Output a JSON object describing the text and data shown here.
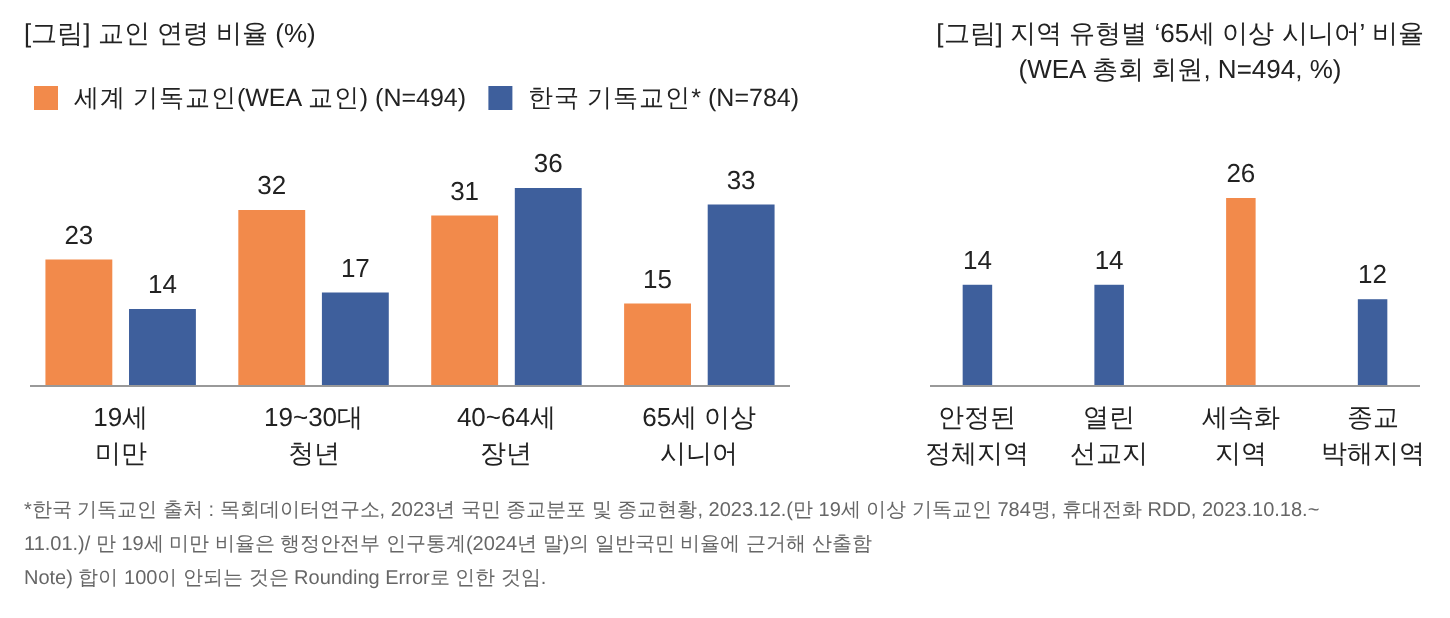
{
  "chart_data": [
    {
      "type": "bar",
      "title": "[그림] 교인 연령 비율 (%)",
      "categories": [
        "19세\n미만",
        "19~30대\n청년",
        "40~64세\n장년",
        "65세 이상\n시니어"
      ],
      "series": [
        {
          "name": "세계 기독교인(WEA 교인) (N=494)",
          "color": "#f28a4b",
          "values": [
            23,
            32,
            31,
            15
          ]
        },
        {
          "name": "한국 기독교인* (N=784)",
          "color": "#3e5f9c",
          "values": [
            14,
            17,
            36,
            33
          ]
        }
      ],
      "data_labels": true,
      "legend": "top left",
      "annotations": [
        "*한국 기독교인 출처 : 목회데이터연구소, 2023년 국민 종교분포 및 종교현황, 2023.12.(만 19세 이상 기독교인 784명, 휴대전화 RDD, 2023.10.18.~",
        "11.01.)/ 만 19세 미만 비율은 행정안전부 인구통계(2024년 말)의 일반국민 비율에 근거해 산출함",
        "Note) 합이 100이 안되는 것은 Rounding Error로 인한 것임."
      ]
    },
    {
      "type": "bar",
      "title": "[그림] 지역 유형별 ‘65세 이상 시니어’ 비율",
      "subtitle": "(WEA 총회 회원, N=494, %)",
      "categories": [
        "안정된\n정체지역",
        "열린\n선교지",
        "세속화\n지역",
        "종교\n박해지역"
      ],
      "values": [
        14,
        14,
        26,
        12
      ],
      "colors": [
        "#3e5f9c",
        "#3e5f9c",
        "#f28a4b",
        "#3e5f9c"
      ],
      "data_labels": true
    }
  ]
}
